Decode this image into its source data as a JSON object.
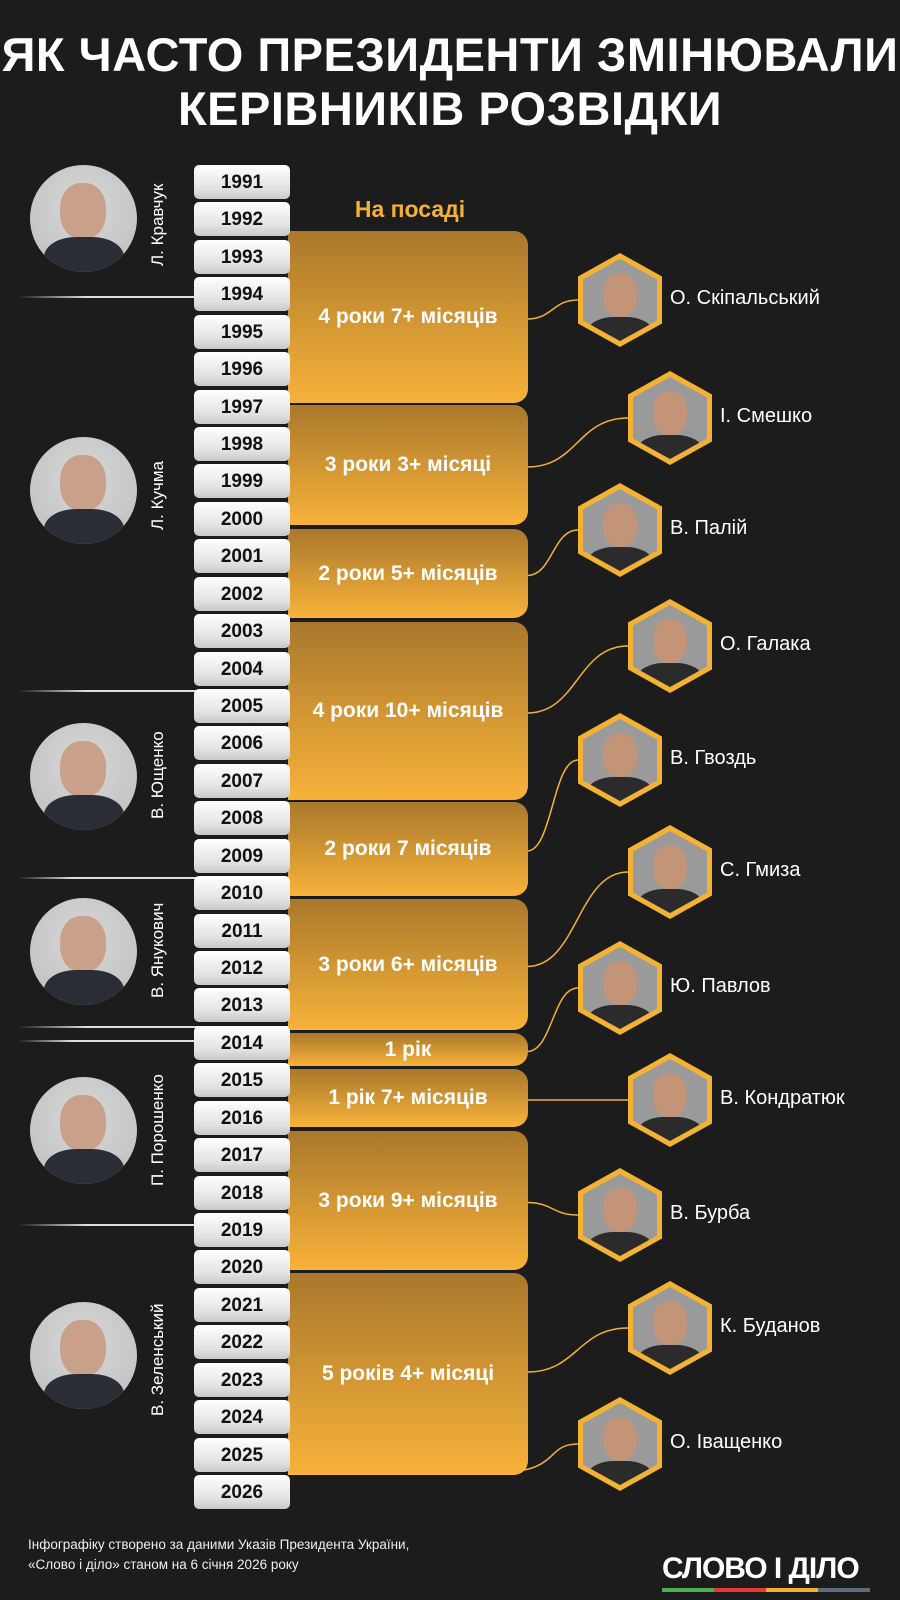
{
  "title": [
    "ЯК ЧАСТО ПРЕЗИДЕНТИ ЗМІНЮВАЛИ",
    "КЕРІВНИКІВ РОЗВІДКИ"
  ],
  "on_post_label": "На посаді",
  "years": [
    "1991",
    "1992",
    "1993",
    "1994",
    "1995",
    "1996",
    "1997",
    "1998",
    "1999",
    "2000",
    "2001",
    "2002",
    "2003",
    "2004",
    "2005",
    "2006",
    "2007",
    "2008",
    "2009",
    "2010",
    "2011",
    "2012",
    "2013",
    "2014",
    "2015",
    "2016",
    "2017",
    "2018",
    "2019",
    "2020",
    "2021",
    "2022",
    "2023",
    "2024",
    "2025",
    "2026"
  ],
  "presidents": [
    {
      "name": "Л. Кравчук"
    },
    {
      "name": "Л. Кучма"
    },
    {
      "name": "В. Ющенко"
    },
    {
      "name": "В. Янукович"
    },
    {
      "name": "П. Порошенко"
    },
    {
      "name": "В. Зеленський"
    }
  ],
  "tenures": [
    {
      "label": "4 роки 7+ місяців",
      "person": "О. Скіпальський"
    },
    {
      "label": "3 роки 3+ місяці",
      "person": "І. Смешко"
    },
    {
      "label": "2 роки 5+ місяців",
      "person": "В. Палій"
    },
    {
      "label": "4 роки 10+ місяців",
      "person": "О. Галака"
    },
    {
      "label": "2 роки 7 місяців",
      "person": "В. Гвоздь"
    },
    {
      "label": "3 роки 6+ місяців",
      "person": "С. Гмиза"
    },
    {
      "label": "1 рік",
      "person": "Ю. Павлов"
    },
    {
      "label": "1 рік 7+ місяців",
      "person": "В. Кондратюк"
    },
    {
      "label": "3 роки 9+ місяців",
      "person": "В. Бурба"
    },
    {
      "label": "5 років 4+ місяці",
      "person": "К. Буданов"
    }
  ],
  "current_person": "О. Іващенко",
  "footer": [
    "Інфографіку створено за даними Указів Президента України,",
    "«Слово і діло» станом на 6 січня 2026 року"
  ],
  "logo": "СЛОВО І ДІЛО",
  "colors": {
    "accent": "#f4b234",
    "background": "#1c1c1c",
    "logo_bar": [
      "#4caf50",
      "#e53935",
      "#f4b234",
      "#5f6b7a"
    ]
  }
}
